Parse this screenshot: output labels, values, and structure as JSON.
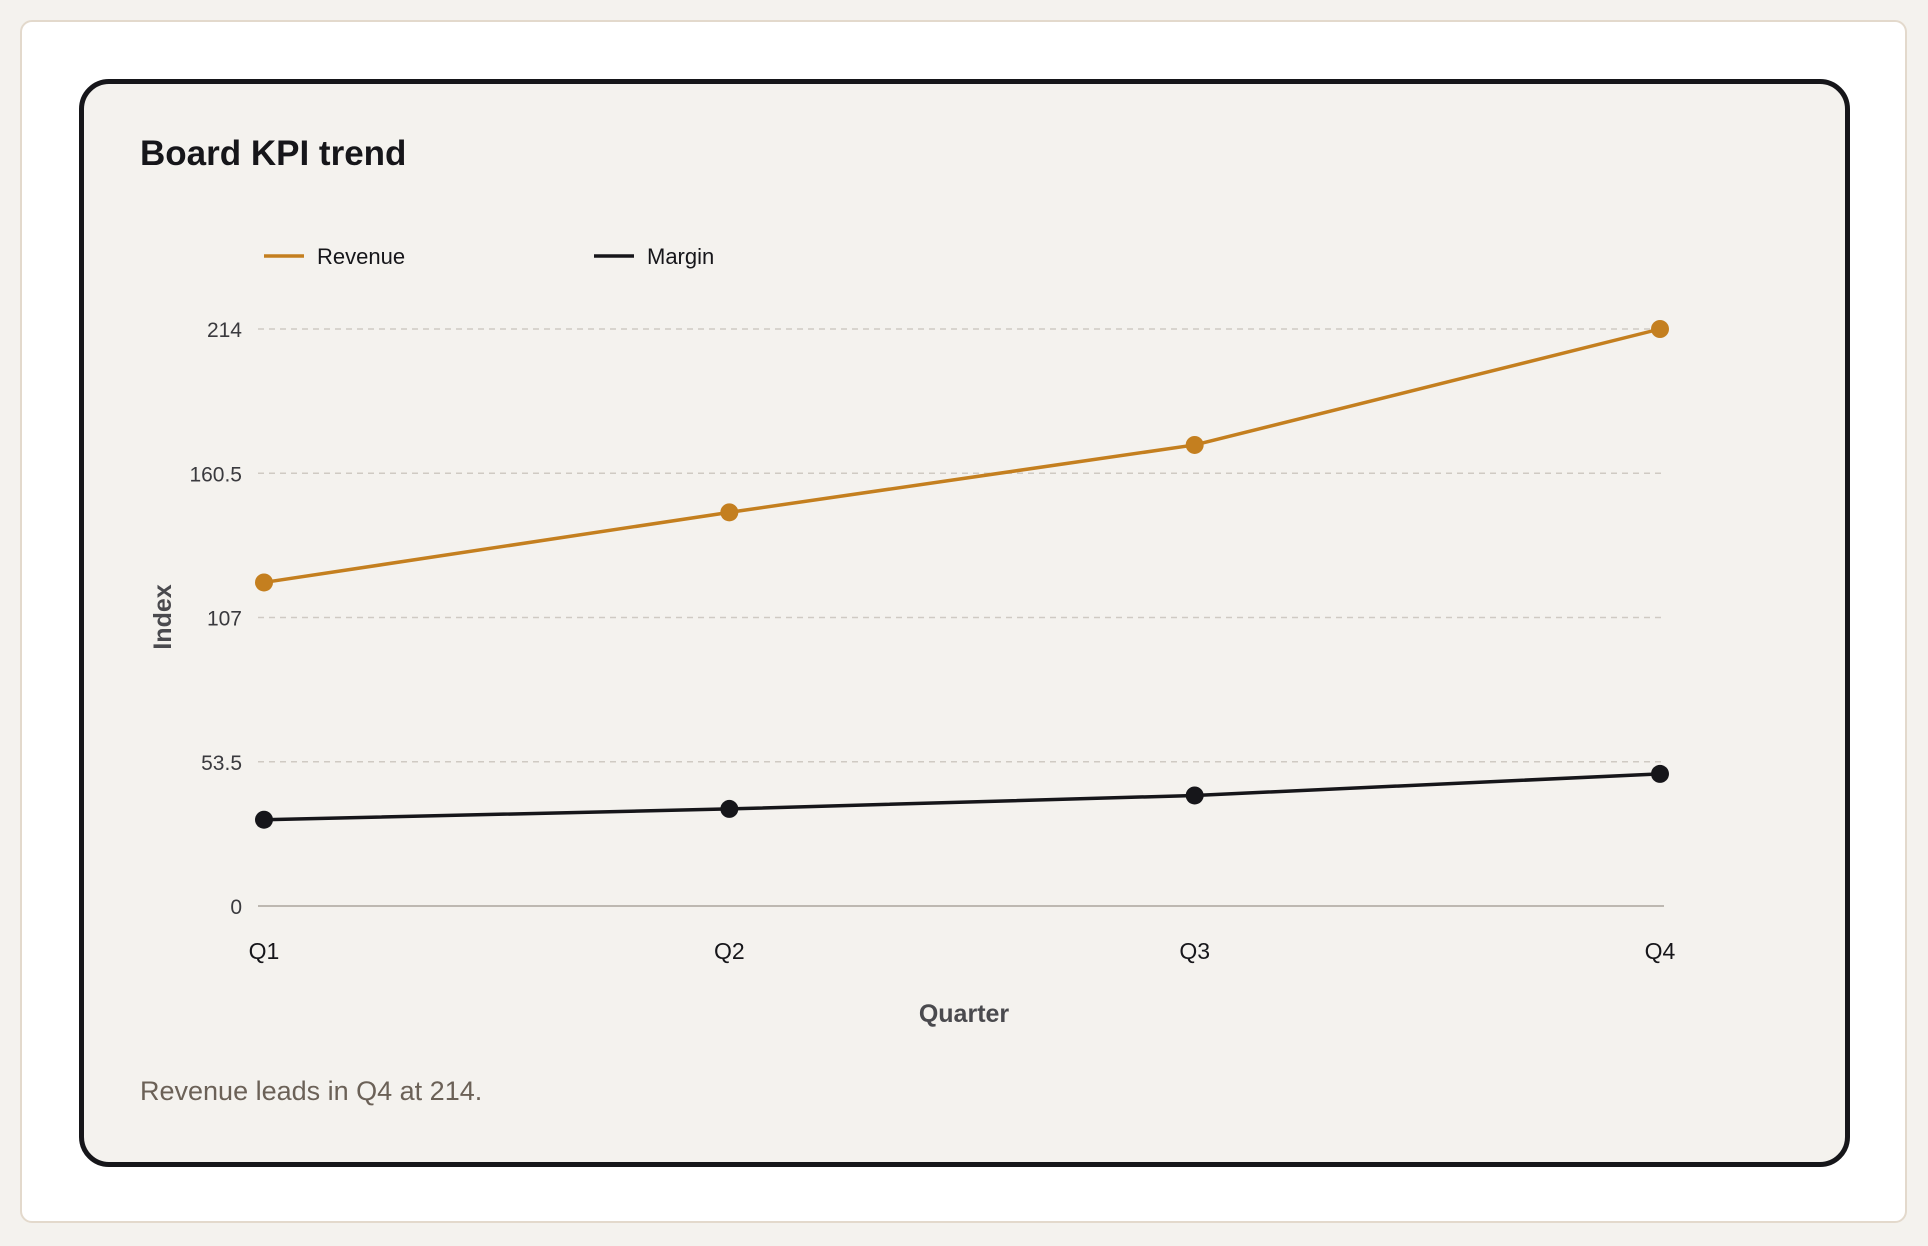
{
  "colors": {
    "revenue": "#c47f1f",
    "margin": "#16161a",
    "grid": "#cfcac3",
    "baseline": "#bdb8b1"
  },
  "caption": "Revenue leads in Q4 at 214.",
  "chart_data": {
    "type": "line",
    "title": "Board KPI trend",
    "xlabel": "Quarter",
    "ylabel": "Index",
    "categories": [
      "Q1",
      "Q2",
      "Q3",
      "Q4"
    ],
    "ylim": [
      0,
      214
    ],
    "yticks": [
      "0",
      "53.5",
      "107",
      "160.5",
      "214"
    ],
    "ytick_values": [
      0,
      53.5,
      107,
      160.5,
      214
    ],
    "grid": true,
    "legend_position": "top-left",
    "series": [
      {
        "name": "Revenue",
        "color_key": "revenue",
        "values": [
          120,
          146,
          171,
          214
        ]
      },
      {
        "name": "Margin",
        "color_key": "margin",
        "values": [
          32,
          36,
          41,
          49
        ]
      }
    ]
  }
}
